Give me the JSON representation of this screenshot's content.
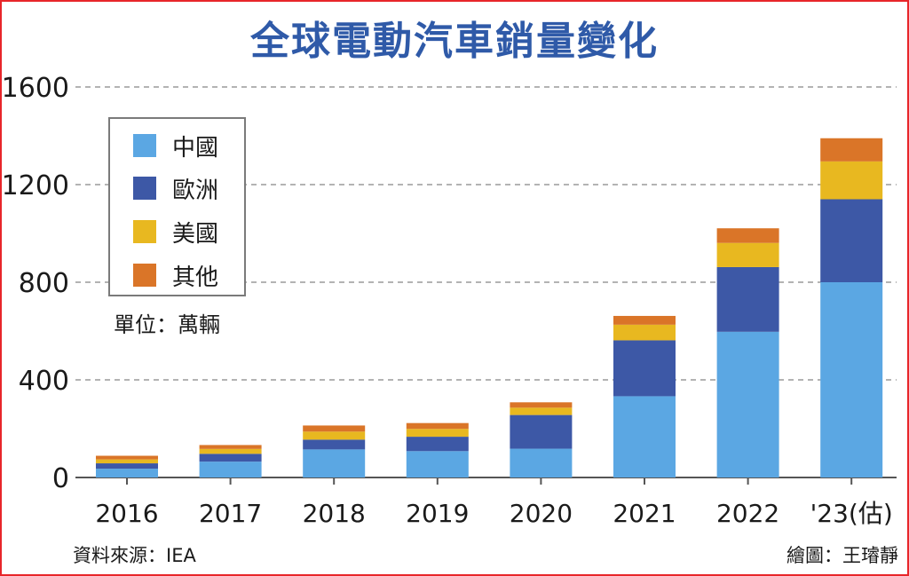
{
  "header": {
    "title": "全球電動汽車銷量變化"
  },
  "legend": [
    {
      "label": "中國",
      "color": "#5ba7e3"
    },
    {
      "label": "歐洲",
      "color": "#3d58a6"
    },
    {
      "label": "美國",
      "color": "#e8b820"
    },
    {
      "label": "其他",
      "color": "#da7528"
    }
  ],
  "unit_label": "單位：萬輛",
  "footer": {
    "source": "資料來源：IEA",
    "credit": "繪圖：王璿靜"
  },
  "chart_data": {
    "type": "bar",
    "stacked": true,
    "title": "全球電動汽車銷量變化",
    "xlabel": "",
    "ylabel": "",
    "unit": "萬輛",
    "ylim": [
      0,
      1600
    ],
    "yticks": [
      0,
      400,
      800,
      1200,
      1600
    ],
    "grid": true,
    "legend_position": "top-left",
    "categories": [
      "2016",
      "2017",
      "2018",
      "2019",
      "2020",
      "2021",
      "2022",
      "'23(估)"
    ],
    "series": [
      {
        "name": "中國",
        "color": "#5ba7e3",
        "values": [
          36,
          65,
          115,
          108,
          118,
          333,
          597,
          800
        ]
      },
      {
        "name": "歐洲",
        "color": "#3d58a6",
        "values": [
          22,
          32,
          40,
          59,
          138,
          229,
          265,
          340
        ]
      },
      {
        "name": "美國",
        "color": "#e8b820",
        "values": [
          16,
          20,
          33,
          32,
          30,
          64,
          99,
          155
        ]
      },
      {
        "name": "其他",
        "color": "#da7528",
        "values": [
          15,
          16,
          25,
          24,
          22,
          36,
          60,
          95
        ]
      }
    ]
  }
}
